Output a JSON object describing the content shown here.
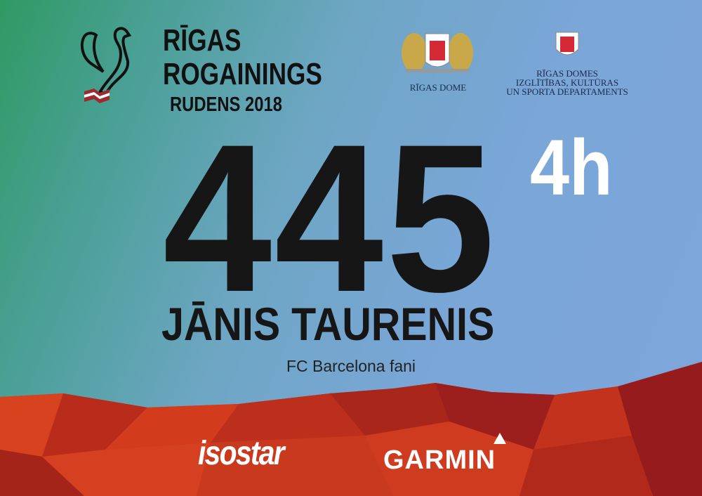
{
  "event": {
    "title_line1": "RĪGAS",
    "title_line2": "ROGAININGS",
    "title_line3": "RUDENS 2018"
  },
  "sponsors_top": {
    "riga_dome": "RĪGAS DOME",
    "department": [
      "RĪGAS DOMES",
      "IZGLĪTĪBAS, KULTŪRAS",
      "UN SPORTA DEPARTAMENTS"
    ]
  },
  "bib": {
    "number": "445",
    "duration": "4h",
    "name": "JĀNIS TAURENIS",
    "team": "FC Barcelona fani"
  },
  "sponsors_bottom": {
    "isostar": "isostar",
    "garmin": "GARMIN"
  },
  "colors": {
    "number": "#161616",
    "duration": "#ffffff",
    "mountain_red": "#d0391f",
    "mountain_dark": "#9b1c1c",
    "sky_blue": "#7aa6d8",
    "green": "#2f9a63"
  }
}
